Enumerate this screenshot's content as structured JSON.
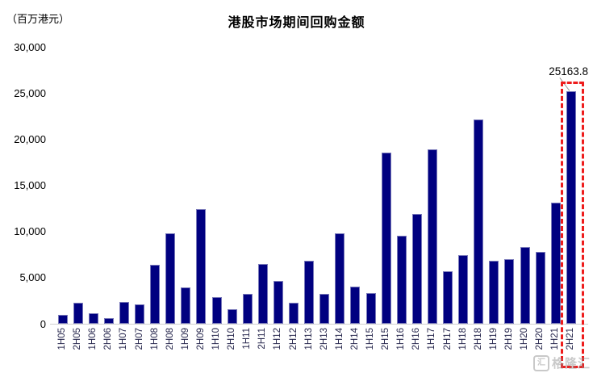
{
  "header": {
    "unit_label": "（百万港元）",
    "title": "港股市场期间回购金额"
  },
  "annotation": {
    "label": "25163.8"
  },
  "watermark": {
    "icon_glyph": "汇",
    "text": "格隆汇"
  },
  "colors": {
    "bar": "#000080",
    "highlight_box": "#ee1c1c",
    "axis_line": "#cfcfcf",
    "x_label": "#28284e",
    "leader_line": "#999999"
  },
  "chart_data": {
    "type": "bar",
    "title": "港股市场期间回购金额",
    "unit": "百万港元",
    "categories": [
      "1H05",
      "2H05",
      "1H06",
      "2H06",
      "1H07",
      "2H07",
      "1H08",
      "2H08",
      "1H09",
      "2H09",
      "1H10",
      "2H10",
      "1H11",
      "2H11",
      "1H12",
      "2H12",
      "1H13",
      "2H13",
      "1H14",
      "2H14",
      "1H15",
      "2H15",
      "1H16",
      "2H16",
      "1H17",
      "2H17",
      "1H18",
      "2H18",
      "1H19",
      "2H19",
      "1H20",
      "2H20",
      "1H21",
      "2H21"
    ],
    "values": [
      950,
      2300,
      1150,
      600,
      2350,
      2100,
      6400,
      9800,
      3900,
      12400,
      2850,
      1550,
      3200,
      6500,
      4600,
      2300,
      6800,
      3200,
      9800,
      4000,
      3350,
      18500,
      9500,
      11900,
      18850,
      5700,
      7400,
      22100,
      6800,
      7000,
      8300,
      7800,
      13100,
      25163.8
    ],
    "ylim": [
      0,
      30000
    ],
    "ytick_step": 5000,
    "ytick_labels": [
      "0",
      "5,000",
      "10,000",
      "15,000",
      "20,000",
      "25,000",
      "30,000"
    ],
    "grid": false,
    "legend": false,
    "highlight": {
      "category": "2H21",
      "value_label": "25163.8"
    }
  }
}
